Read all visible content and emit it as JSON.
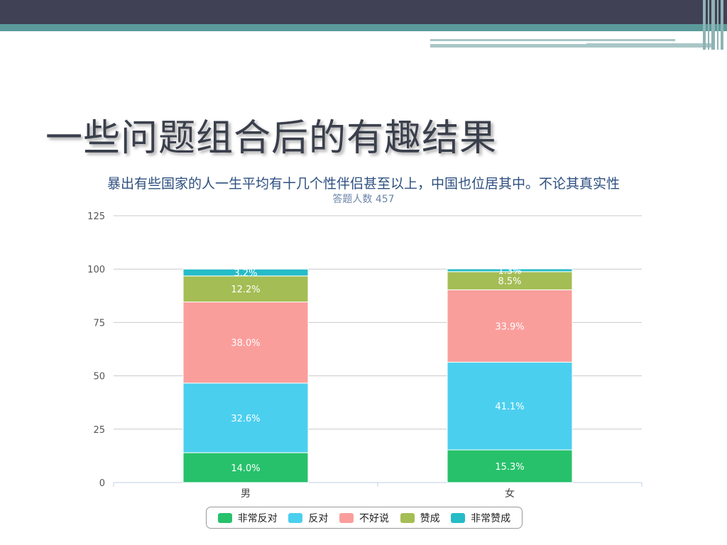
{
  "slide": {
    "title": "一些问题组合后的有趣结果"
  },
  "chart_data": {
    "type": "bar",
    "stacked": true,
    "title": "暴出有些国家的人一生平均有十几个性伴侣甚至以上，中国也位居其中。不论其真实性",
    "subtitle": "答题人数 457",
    "categories": [
      "男",
      "女"
    ],
    "ylim": [
      0,
      125
    ],
    "yticks": [
      0,
      25,
      50,
      75,
      100,
      125
    ],
    "grid": true,
    "legend_position": "bottom",
    "series": [
      {
        "name": "非常反对",
        "color": "#27c16b",
        "values": [
          14.0,
          15.3
        ],
        "labels": [
          "14.0%",
          "15.3%"
        ]
      },
      {
        "name": "反对",
        "color": "#4bcfef",
        "values": [
          32.6,
          41.1
        ],
        "labels": [
          "32.6%",
          "41.1%"
        ]
      },
      {
        "name": "不好说",
        "color": "#fa9e9c",
        "values": [
          38.0,
          33.9
        ],
        "labels": [
          "38.0%",
          "33.9%"
        ]
      },
      {
        "name": "赞成",
        "color": "#a5bd55",
        "values": [
          12.2,
          8.5
        ],
        "labels": [
          "12.2%",
          "8.5%"
        ]
      },
      {
        "name": "非常赞成",
        "color": "#25bcc7",
        "values": [
          3.2,
          1.3
        ],
        "labels": [
          "3.2%",
          "1.3%"
        ]
      }
    ]
  }
}
